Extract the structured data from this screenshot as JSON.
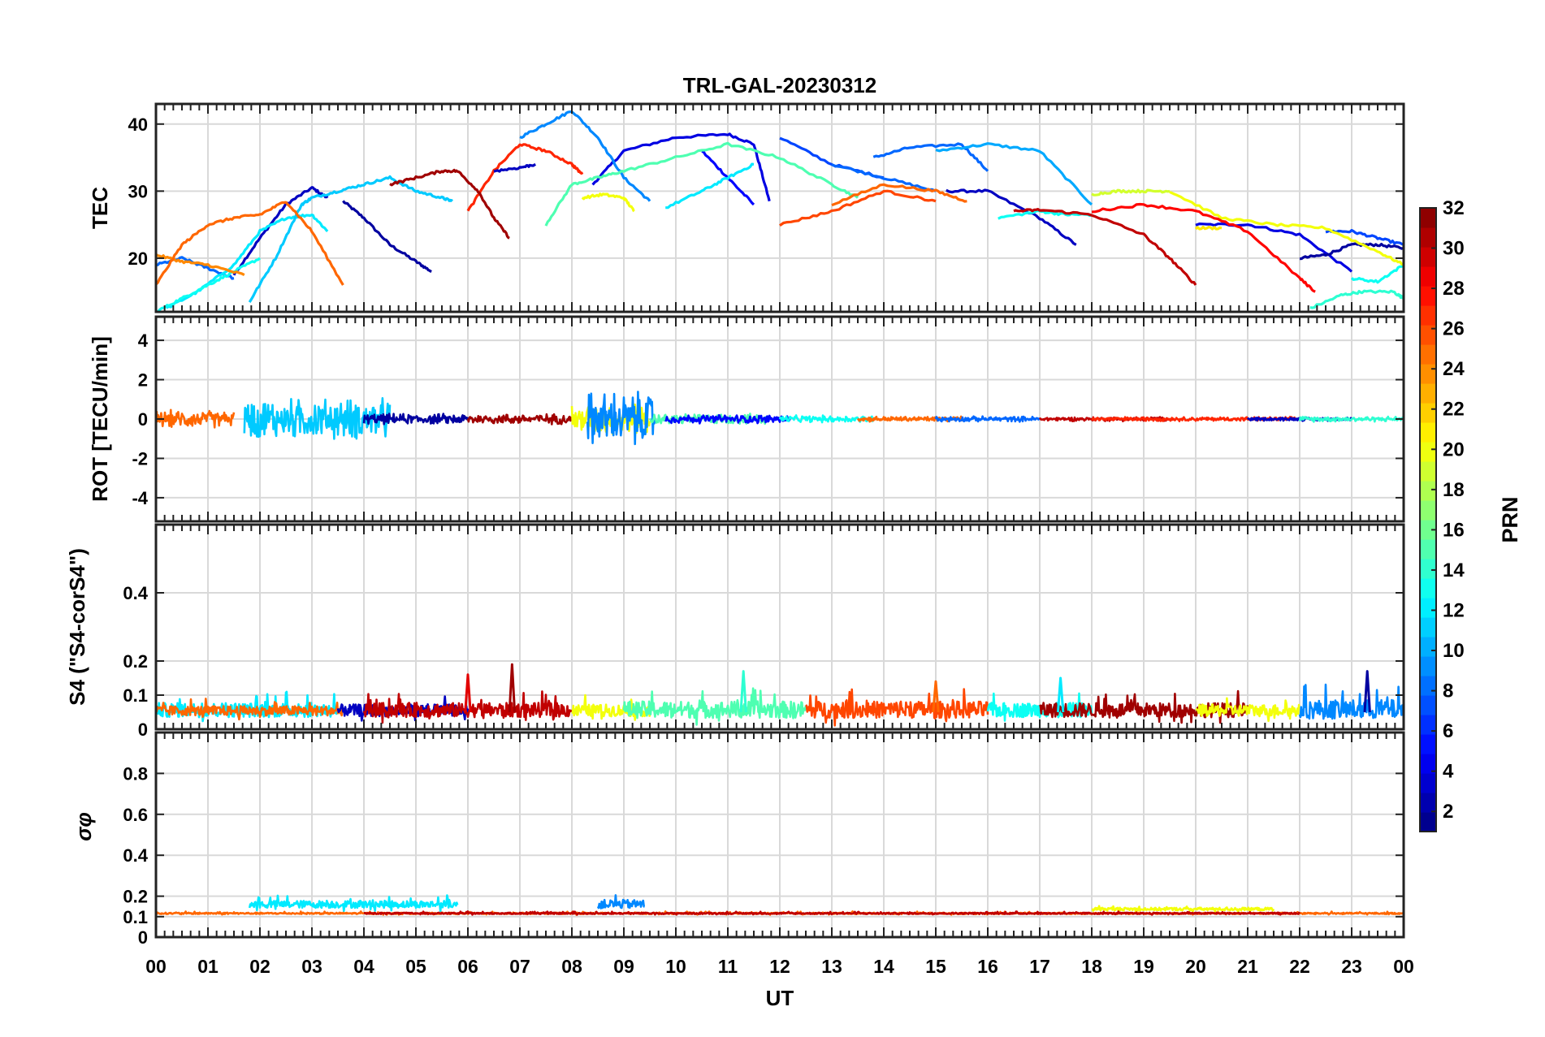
{
  "chart_data": {
    "type": "line",
    "title": "TRL-GAL-20230312",
    "xlabel": "UT",
    "xlim": [
      0,
      24
    ],
    "x_tick_labels": [
      "00",
      "01",
      "02",
      "03",
      "04",
      "05",
      "06",
      "07",
      "08",
      "09",
      "10",
      "11",
      "12",
      "13",
      "14",
      "15",
      "16",
      "17",
      "18",
      "19",
      "20",
      "21",
      "22",
      "23",
      "00"
    ],
    "colorbar": {
      "label": "PRN",
      "range": [
        1,
        32
      ],
      "tick_labels": [
        "2",
        "4",
        "6",
        "8",
        "10",
        "12",
        "14",
        "16",
        "18",
        "20",
        "22",
        "24",
        "26",
        "28",
        "30",
        "32"
      ]
    },
    "panels": [
      {
        "id": "tec",
        "ylabel": "TEC",
        "ylim": [
          12,
          43
        ],
        "yticks": [
          20,
          30,
          40
        ],
        "series": [
          {
            "prn": 2,
            "x": [
              3.6,
              4.0,
              4.5,
              5.0,
              5.3
            ],
            "y": [
              28.5,
              26,
              22,
              19.5,
              18
            ]
          },
          {
            "prn": 3,
            "x": [
              1.5,
              2.0,
              2.5,
              3.0,
              3.3
            ],
            "y": [
              17.5,
              23,
              28,
              30.5,
              29
            ]
          },
          {
            "prn": 4,
            "x": [
              8.4,
              9.0,
              10.0,
              11.0,
              11.5,
              11.8
            ],
            "y": [
              31,
              36,
              38,
              38.5,
              37,
              28.5
            ]
          },
          {
            "prn": 5,
            "x": [
              10.5,
              11.0,
              11.5
            ],
            "y": [
              36,
              32,
              28
            ]
          },
          {
            "prn": 3,
            "x": [
              15.2,
              16.0,
              17.0,
              17.7
            ],
            "y": [
              30,
              30,
              26,
              22
            ]
          },
          {
            "prn": 4,
            "x": [
              20.0,
              21.0,
              22.0,
              23.0
            ],
            "y": [
              25,
              25,
              23.5,
              18
            ]
          },
          {
            "prn": 2,
            "x": [
              22.0,
              22.5,
              23.0,
              23.5,
              24.0
            ],
            "y": [
              20,
              20.5,
              22,
              22,
              21.5
            ]
          },
          {
            "prn": 9,
            "x": [
              7.0,
              7.5,
              8.0,
              8.5,
              9.0,
              9.5
            ],
            "y": [
              38,
              40,
              42,
              38,
              32,
              28.5
            ]
          },
          {
            "prn": 8,
            "x": [
              13.8,
              14.5,
              15.5,
              16.0
            ],
            "y": [
              35,
              36.5,
              37,
              33
            ]
          },
          {
            "prn": 7,
            "x": [
              12.0,
              13.0,
              14.0
            ],
            "y": [
              38,
              34,
              32
            ]
          },
          {
            "prn": 8,
            "x": [
              13.0,
              14.0,
              15.0
            ],
            "y": [
              34,
              32,
              30
            ]
          },
          {
            "prn": 10,
            "x": [
              15.0,
              16.0,
              17.0,
              18.0
            ],
            "y": [
              36,
              37,
              36,
              28
            ]
          },
          {
            "prn": 7,
            "x": [
              22.5,
              23.0,
              23.5,
              24.0
            ],
            "y": [
              24,
              24,
              23,
              22
            ]
          },
          {
            "prn": 8,
            "x": [
              0.0,
              0.5,
              1.0,
              1.5
            ],
            "y": [
              19,
              20,
              18.5,
              17
            ]
          },
          {
            "prn": 12,
            "x": [
              0.2,
              0.8,
              1.5,
              2.0,
              2.5,
              3.0,
              3.3
            ],
            "y": [
              12.5,
              15,
              19,
              24,
              26,
              26.5,
              24
            ]
          },
          {
            "prn": 11,
            "x": [
              1.8,
              2.3,
              2.8,
              3.0,
              3.5,
              4.0,
              4.5,
              5.0,
              5.5,
              5.7
            ],
            "y": [
              13.5,
              20,
              28,
              29,
              30,
              31,
              32,
              30,
              29,
              28.5
            ]
          },
          {
            "prn": 13,
            "x": [
              0.0,
              0.5,
              1.0,
              1.5,
              2.0
            ],
            "y": [
              12,
              14,
              16,
              18,
              20
            ]
          },
          {
            "prn": 12,
            "x": [
              9.8,
              10.5,
              11.0,
              11.5
            ],
            "y": [
              27.5,
              30,
              32,
              34
            ]
          },
          {
            "prn": 13,
            "x": [
              16.2,
              17.0,
              17.5,
              18.0
            ],
            "y": [
              26,
              27,
              26.5,
              26.5
            ]
          },
          {
            "prn": 14,
            "x": [
              22.2,
              22.8,
              23.2,
              23.8,
              24.0
            ],
            "y": [
              12.5,
              14.5,
              15,
              15,
              14
            ]
          },
          {
            "prn": 15,
            "x": [
              7.5,
              8.0,
              8.5,
              9.0,
              10.0,
              11.0,
              12.0,
              13.0,
              13.5
            ],
            "y": [
              25,
              31,
              32,
              33,
              35,
              37,
              35,
              31,
              29
            ]
          },
          {
            "prn": 13,
            "x": [
              23.0,
              23.5,
              24.0
            ],
            "y": [
              17,
              16.5,
              19
            ]
          },
          {
            "prn": 20,
            "x": [
              8.2,
              8.6,
              9.0,
              9.2
            ],
            "y": [
              29,
              29.5,
              29,
              27
            ]
          },
          {
            "prn": 19,
            "x": [
              18.0,
              18.5,
              19.0,
              19.5
            ],
            "y": [
              29.5,
              30,
              30,
              30
            ]
          },
          {
            "prn": 20,
            "x": [
              19.5,
              20.5,
              21.5,
              22.5,
              23.5,
              24.0
            ],
            "y": [
              30,
              26,
              25,
              24.5,
              21,
              19
            ]
          },
          {
            "prn": 21,
            "x": [
              20.0,
              20.5
            ],
            "y": [
              24.5,
              24.5
            ]
          },
          {
            "prn": 24,
            "x": [
              0.0,
              0.5,
              1.0,
              1.7
            ],
            "y": [
              20.5,
              19.5,
              19,
              17.5
            ]
          },
          {
            "prn": 25,
            "x": [
              0.0,
              0.5,
              1.0,
              1.5,
              2.0,
              2.5,
              3.0,
              3.6
            ],
            "y": [
              16,
              22,
              25,
              26,
              26.5,
              28.5,
              24,
              16
            ]
          },
          {
            "prn": 25,
            "x": [
              13.0,
              14.0,
              15.0,
              15.6
            ],
            "y": [
              28,
              31,
              30,
              28.5
            ]
          },
          {
            "prn": 26,
            "x": [
              12.0,
              13.0,
              14.0,
              15.0
            ],
            "y": [
              25,
              27,
              30,
              28.5
            ]
          },
          {
            "prn": 27,
            "x": [
              6.0,
              6.5,
              7.0,
              7.5,
              8.0,
              8.2
            ],
            "y": [
              27,
              33,
              37,
              36,
              34,
              32.5
            ]
          },
          {
            "prn": 28,
            "x": [
              18.0,
              19.0,
              20.0,
              21.0,
              22.0,
              22.3
            ],
            "y": [
              27,
              28,
              27,
              24,
              17,
              15
            ]
          },
          {
            "prn": 31,
            "x": [
              4.5,
              5.0,
              5.5,
              5.8,
              6.2,
              6.5,
              6.8
            ],
            "y": [
              31,
              32,
              33,
              33,
              30,
              26,
              23
            ]
          },
          {
            "prn": 30,
            "x": [
              16.5,
              17.0,
              18.0,
              19.0,
              19.5,
              20.0
            ],
            "y": [
              27,
              27.2,
              26.5,
              23.5,
              20,
              16
            ]
          },
          {
            "prn": 3,
            "x": [
              6.5,
              7.0,
              7.3
            ],
            "y": [
              33,
              33.5,
              34
            ]
          }
        ]
      },
      {
        "id": "rot",
        "ylabel": "ROT [TECU/min]",
        "ylim": [
          -5.2,
          5.2
        ],
        "yticks": [
          -4,
          -2,
          0,
          2,
          4
        ],
        "noise": [
          {
            "prn": 11,
            "from": 1.7,
            "to": 4.5,
            "amp": 1.2
          },
          {
            "prn": 25,
            "from": 0.0,
            "to": 1.5,
            "amp": 0.5
          },
          {
            "prn": 2,
            "from": 4.0,
            "to": 6.0,
            "amp": 0.3
          },
          {
            "prn": 31,
            "from": 6.0,
            "to": 8.0,
            "amp": 0.3
          },
          {
            "prn": 20,
            "from": 8.0,
            "to": 9.5,
            "amp": 0.9
          },
          {
            "prn": 9,
            "from": 8.3,
            "to": 9.6,
            "amp": 1.6
          },
          {
            "prn": 15,
            "from": 9.5,
            "to": 11.8,
            "amp": 0.3
          },
          {
            "prn": 5,
            "from": 9.8,
            "to": 12.2,
            "amp": 0.25
          },
          {
            "prn": 13,
            "from": 12.0,
            "to": 13.8,
            "amp": 0.2
          },
          {
            "prn": 25,
            "from": 13.5,
            "to": 15.5,
            "amp": 0.15
          },
          {
            "prn": 8,
            "from": 15.0,
            "to": 17.0,
            "amp": 0.15
          },
          {
            "prn": 30,
            "from": 17.0,
            "to": 19.5,
            "amp": 0.12
          },
          {
            "prn": 27,
            "from": 18.0,
            "to": 22.0,
            "amp": 0.12
          },
          {
            "prn": 3,
            "from": 21.0,
            "to": 23.0,
            "amp": 0.1
          },
          {
            "prn": 14,
            "from": 22.0,
            "to": 24.0,
            "amp": 0.15
          }
        ]
      },
      {
        "id": "s4",
        "ylabel": "S4 (\"S4-corS4\")",
        "ylim": [
          0,
          0.6
        ],
        "yticks": [
          0,
          0.1,
          0.2,
          0.4
        ],
        "base_level": 0.05,
        "peaks": [
          {
            "prn": 31,
            "x": 6.85,
            "y": 0.19
          },
          {
            "prn": 29,
            "x": 6.0,
            "y": 0.16
          },
          {
            "prn": 2,
            "x": 23.3,
            "y": 0.17
          },
          {
            "prn": 14,
            "x": 11.3,
            "y": 0.17
          },
          {
            "prn": 12,
            "x": 17.4,
            "y": 0.15
          },
          {
            "prn": 25,
            "x": 15.0,
            "y": 0.14
          }
        ],
        "noise": [
          {
            "prn": 12,
            "from": 0.0,
            "to": 3.5,
            "amp": 0.06
          },
          {
            "prn": 25,
            "from": 0.0,
            "to": 3.6,
            "amp": 0.04
          },
          {
            "prn": 3,
            "from": 3.5,
            "to": 6.0,
            "amp": 0.05
          },
          {
            "prn": 30,
            "from": 4.0,
            "to": 8.0,
            "amp": 0.06
          },
          {
            "prn": 20,
            "from": 8.0,
            "to": 9.5,
            "amp": 0.05
          },
          {
            "prn": 15,
            "from": 9.0,
            "to": 12.5,
            "amp": 0.07
          },
          {
            "prn": 26,
            "from": 12.5,
            "to": 16.0,
            "amp": 0.07
          },
          {
            "prn": 13,
            "from": 16.0,
            "to": 18.0,
            "amp": 0.06
          },
          {
            "prn": 31,
            "from": 17.0,
            "to": 21.0,
            "amp": 0.06
          },
          {
            "prn": 20,
            "from": 20.0,
            "to": 22.0,
            "amp": 0.05
          },
          {
            "prn": 9,
            "from": 22.0,
            "to": 24.0,
            "amp": 0.08
          }
        ]
      },
      {
        "id": "sigma",
        "ylabel": "σφ",
        "ylim": [
          0,
          1.0
        ],
        "yticks": [
          0,
          0.1,
          0.2,
          0.4,
          0.6,
          0.8
        ],
        "base_level": 0.115,
        "noise": [
          {
            "prn": 12,
            "from": 1.8,
            "to": 5.8,
            "amp": 0.05,
            "lift": 0.04
          },
          {
            "prn": 25,
            "from": 0.0,
            "to": 24.0,
            "amp": 0.01,
            "lift": 0
          },
          {
            "prn": 9,
            "from": 8.5,
            "to": 9.4,
            "amp": 0.06,
            "lift": 0.04
          },
          {
            "prn": 20,
            "from": 18.0,
            "to": 21.5,
            "amp": 0.02,
            "lift": 0.02
          },
          {
            "prn": 30,
            "from": 4.0,
            "to": 22.0,
            "amp": 0.01,
            "lift": 0
          }
        ]
      }
    ]
  }
}
